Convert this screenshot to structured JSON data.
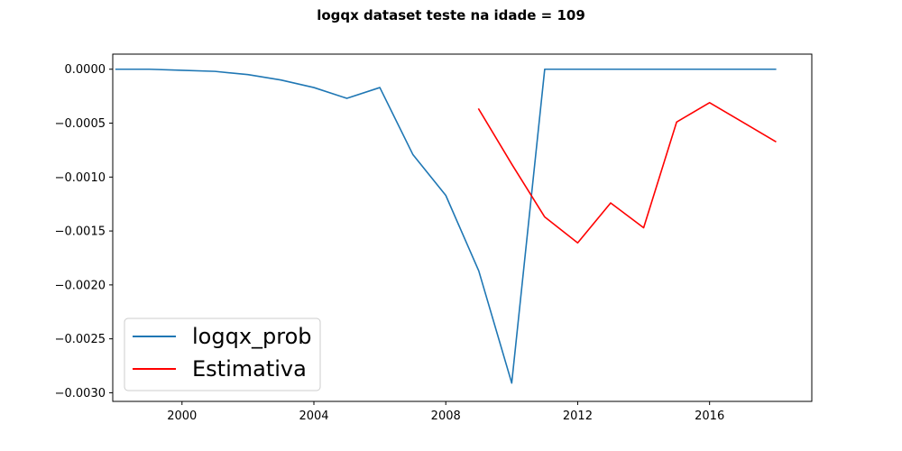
{
  "chart_data": {
    "type": "line",
    "title": "logqx dataset teste na idade = 109",
    "xlabel": "",
    "ylabel": "",
    "xlim": [
      1997.9,
      2019.1
    ],
    "ylim": [
      -0.00308,
      0.00014
    ],
    "xticks": [
      2000,
      2004,
      2008,
      2012,
      2016
    ],
    "xtick_labels": [
      "2000",
      "2004",
      "2008",
      "2012",
      "2016"
    ],
    "yticks": [
      0.0,
      -0.0005,
      -0.001,
      -0.0015,
      -0.002,
      -0.0025,
      -0.003
    ],
    "ytick_labels": [
      "0.0000",
      "−0.0005",
      "−0.0010",
      "−0.0015",
      "−0.0020",
      "−0.0025",
      "−0.0030"
    ],
    "grid": false,
    "legend_position": "lower-left",
    "series": [
      {
        "name": "logqx_prob",
        "color": "#1f77b4",
        "x": [
          1998,
          1999,
          2000,
          2001,
          2002,
          2003,
          2004,
          2005,
          2006,
          2007,
          2008,
          2009,
          2010,
          2011,
          2012,
          2013,
          2014,
          2015,
          2016,
          2017,
          2018
        ],
        "y": [
          0.0,
          0.0,
          -1e-05,
          -2e-05,
          -5e-05,
          -0.0001,
          -0.00017,
          -0.00027,
          -0.00017,
          -0.00079,
          -0.00117,
          -0.00187,
          -0.00291,
          0.0,
          0.0,
          0.0,
          0.0,
          0.0,
          0.0,
          0.0,
          0.0
        ]
      },
      {
        "name": "Estimativa",
        "color": "#ff0000",
        "x": [
          2009,
          2010,
          2011,
          2012,
          2013,
          2014,
          2015,
          2016,
          2017,
          2018
        ],
        "y": [
          -0.00037,
          -0.00088,
          -0.00137,
          -0.00161,
          -0.00124,
          -0.00147,
          -0.00049,
          -0.00031,
          -0.00049,
          -0.00067
        ]
      }
    ]
  }
}
